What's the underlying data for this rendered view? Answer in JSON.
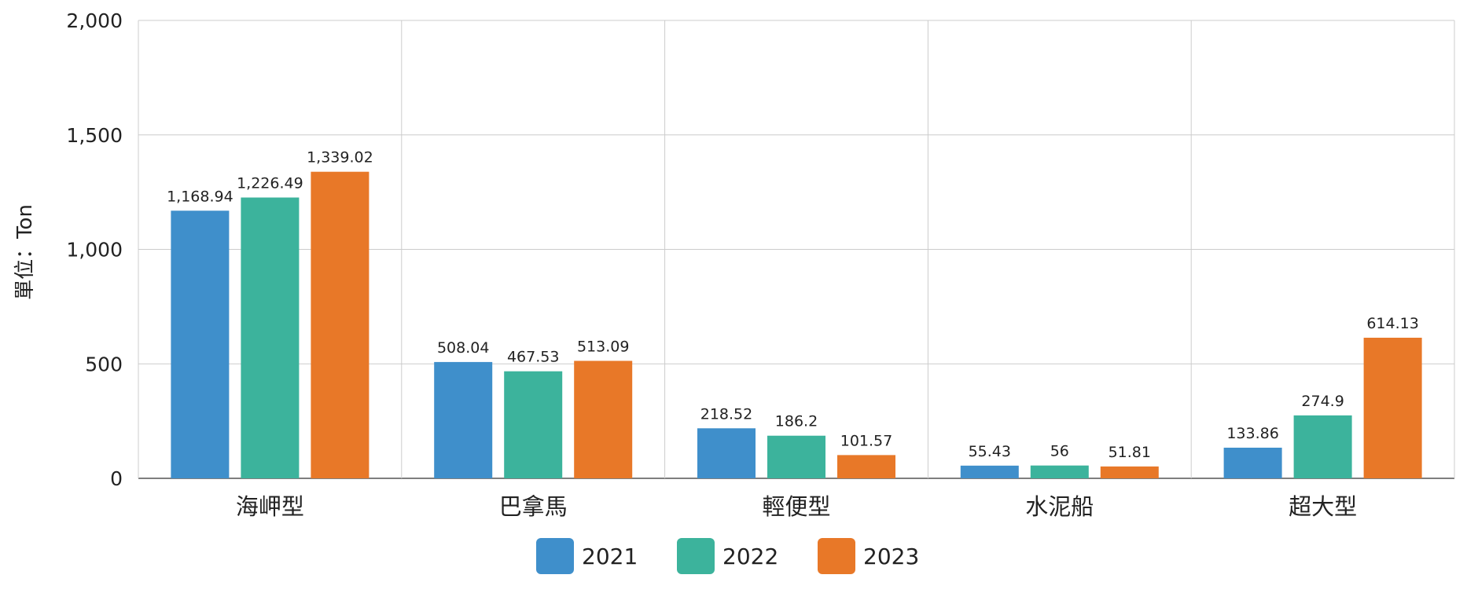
{
  "chart_data": {
    "type": "bar",
    "title": "",
    "xlabel": "",
    "ylabel": "單位：Ton",
    "ylim": [
      0,
      2000
    ],
    "yticks": [
      0,
      500,
      1000,
      1500,
      2000
    ],
    "ytick_labels": [
      "0",
      "500",
      "1,000",
      "1,500",
      "2,000"
    ],
    "grid": true,
    "legend_position": "bottom",
    "categories": [
      "海岬型",
      "巴拿馬",
      "輕便型",
      "水泥船",
      "超大型"
    ],
    "series": [
      {
        "name": "2021",
        "color": "#3f8fcb",
        "values": [
          1168.94,
          508.04,
          218.52,
          55.43,
          133.86
        ],
        "labels": [
          "1,168.94",
          "508.04",
          "218.52",
          "55.43",
          "133.86"
        ]
      },
      {
        "name": "2022",
        "color": "#3cb39c",
        "values": [
          1226.49,
          467.53,
          186.2,
          56,
          274.9
        ],
        "labels": [
          "1,226.49",
          "467.53",
          "186.2",
          "56",
          "274.9"
        ]
      },
      {
        "name": "2023",
        "color": "#e87828",
        "values": [
          1339.02,
          513.09,
          101.57,
          51.81,
          614.13
        ],
        "labels": [
          "1,339.02",
          "513.09",
          "101.57",
          "51.81",
          "614.13"
        ]
      }
    ]
  }
}
